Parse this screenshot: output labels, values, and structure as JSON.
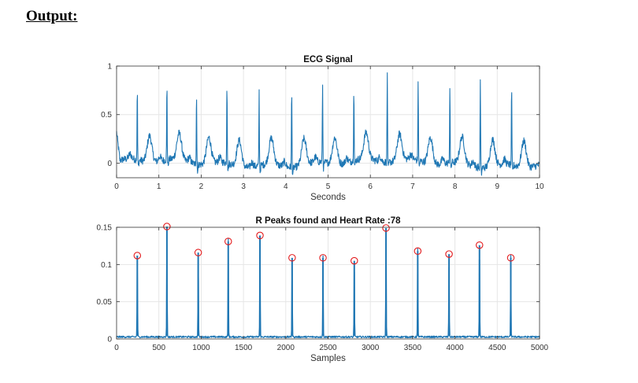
{
  "heading": "Output:",
  "colors": {
    "signal": "#1f77b4",
    "peak_marker": "#e31a1c",
    "grid": "#e6e6e6",
    "axes": "#333333"
  },
  "chart_data": [
    {
      "type": "line",
      "title": "ECG Signal",
      "xlabel": "Seconds",
      "ylabel": "",
      "xlim": [
        0,
        10
      ],
      "ylim": [
        -0.15,
        1
      ],
      "xticks": [
        "0",
        "1",
        "2",
        "3",
        "4",
        "5",
        "6",
        "7",
        "8",
        "9",
        "10"
      ],
      "yticks": [
        "0",
        "0.5",
        "1"
      ],
      "xtick_values": [
        0,
        1,
        2,
        3,
        4,
        5,
        6,
        7,
        8,
        9,
        10
      ],
      "ytick_values": [
        0,
        0.5,
        1
      ],
      "grid": true,
      "r_peaks": [
        {
          "x": 0.49,
          "y": 0.75
        },
        {
          "x": 1.19,
          "y": 0.81
        },
        {
          "x": 1.89,
          "y": 0.76
        },
        {
          "x": 2.61,
          "y": 0.85
        },
        {
          "x": 3.37,
          "y": 0.79
        },
        {
          "x": 4.14,
          "y": 0.81
        },
        {
          "x": 4.87,
          "y": 0.81
        },
        {
          "x": 5.61,
          "y": 0.78
        },
        {
          "x": 6.4,
          "y": 0.93
        },
        {
          "x": 7.13,
          "y": 0.83
        },
        {
          "x": 7.88,
          "y": 0.81
        },
        {
          "x": 8.6,
          "y": 0.89
        },
        {
          "x": 9.34,
          "y": 0.8
        }
      ]
    },
    {
      "type": "line",
      "title": "R Peaks found and Heart Rate :78",
      "xlabel": "Samples",
      "ylabel": "",
      "xlim": [
        0,
        5000
      ],
      "ylim": [
        0,
        0.15
      ],
      "xticks": [
        "0",
        "500",
        "1000",
        "1500",
        "2000",
        "2500",
        "3000",
        "3500",
        "4000",
        "4500",
        "5000"
      ],
      "yticks": [
        "0",
        "0.05",
        "0.1",
        "0.15"
      ],
      "xtick_values": [
        0,
        500,
        1000,
        1500,
        2000,
        2500,
        3000,
        3500,
        4000,
        4500,
        5000
      ],
      "ytick_values": [
        0,
        0.05,
        0.1,
        0.15
      ],
      "grid": true,
      "peaks": [
        {
          "x": 245,
          "y": 0.112
        },
        {
          "x": 595,
          "y": 0.151
        },
        {
          "x": 965,
          "y": 0.116
        },
        {
          "x": 1320,
          "y": 0.131
        },
        {
          "x": 1695,
          "y": 0.139
        },
        {
          "x": 2075,
          "y": 0.109
        },
        {
          "x": 2440,
          "y": 0.109
        },
        {
          "x": 2810,
          "y": 0.105
        },
        {
          "x": 3185,
          "y": 0.149
        },
        {
          "x": 3560,
          "y": 0.118
        },
        {
          "x": 3930,
          "y": 0.114
        },
        {
          "x": 4290,
          "y": 0.126
        },
        {
          "x": 4660,
          "y": 0.109
        }
      ]
    }
  ]
}
